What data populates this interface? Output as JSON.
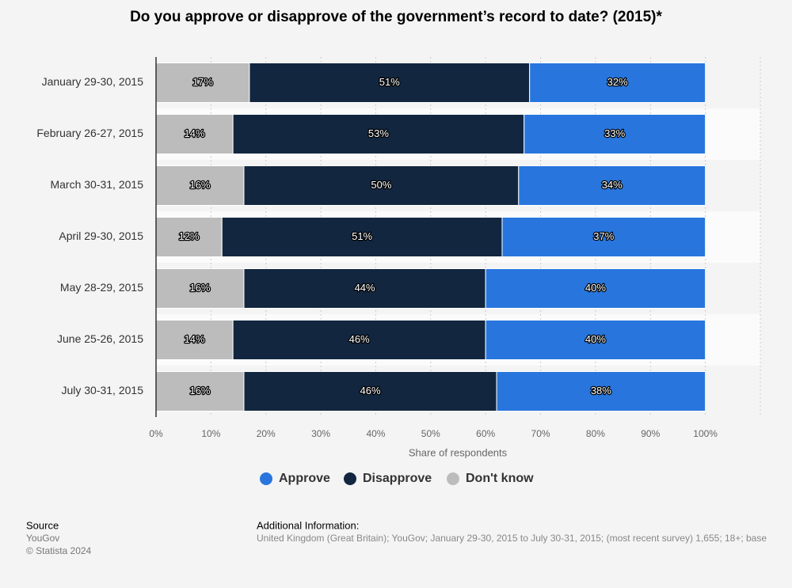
{
  "chart_data": {
    "type": "stacked_barh",
    "title": "Do you approve or disapprove of the government’s record to date? (2015)*",
    "categories": [
      "January 29-30, 2015",
      "February 26-27, 2015",
      "March 30-31, 2015",
      "April 29-30, 2015",
      "May 28-29, 2015",
      "June 25-26, 2015",
      "July 30-31, 2015"
    ],
    "series": [
      {
        "name": "Don't know",
        "color": "#bcbcbc",
        "values": [
          17,
          14,
          16,
          12,
          16,
          14,
          16
        ],
        "value_labels": [
          "17%",
          "14%",
          "16%",
          "12%",
          "16%",
          "14%",
          "16%"
        ]
      },
      {
        "name": "Disapprove",
        "color": "#12263f",
        "values": [
          51,
          53,
          50,
          51,
          44,
          46,
          46
        ],
        "value_labels": [
          "51%",
          "53%",
          "50%",
          "51%",
          "44%",
          "46%",
          "46%"
        ]
      },
      {
        "name": "Approve",
        "color": "#2876dd",
        "values": [
          32,
          33,
          34,
          37,
          40,
          40,
          38
        ],
        "value_labels": [
          "32%",
          "33%",
          "34%",
          "37%",
          "40%",
          "40%",
          "38%"
        ]
      }
    ],
    "xlabel": "Share of respondents",
    "xlim": [
      0,
      110
    ],
    "xticks": [
      {
        "value": 0,
        "label": "0%"
      },
      {
        "value": 10,
        "label": "10%"
      },
      {
        "value": 20,
        "label": "20%"
      },
      {
        "value": 30,
        "label": "30%"
      },
      {
        "value": 40,
        "label": "40%"
      },
      {
        "value": 50,
        "label": "50%"
      },
      {
        "value": 60,
        "label": "60%"
      },
      {
        "value": 70,
        "label": "70%"
      },
      {
        "value": 80,
        "label": "80%"
      },
      {
        "value": 90,
        "label": "90%"
      },
      {
        "value": 100,
        "label": "100%"
      }
    ],
    "grid": true
  },
  "footer": {
    "source_title": "Source",
    "source": "YouGov",
    "copyright": "© Statista 2024",
    "info_title": "Additional Information:",
    "info": "United Kingdom (Great Britain); YouGov; January 29-30, 2015 to July 30-31, 2015; (most recent survey) 1,655; 18+; base"
  }
}
